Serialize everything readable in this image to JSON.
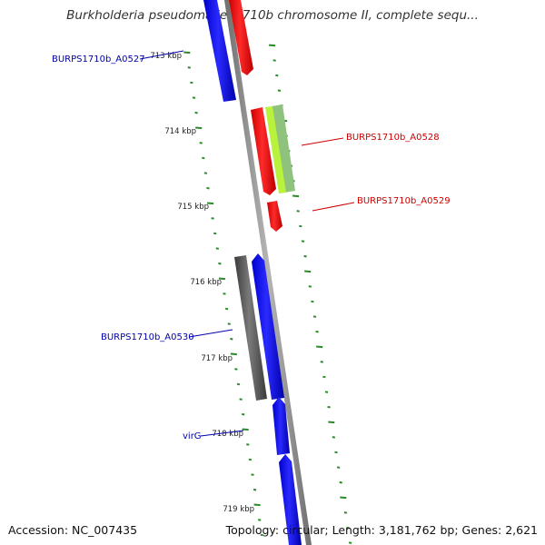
{
  "title": "Burkholderia pseudomallei 1710b chromosome II, complete sequ...",
  "footer": {
    "accession": "Accession: NC_007435",
    "topology": "Topology: circular; Length: 3,181,762 bp; Genes: 2,621"
  },
  "colors": {
    "forward_gene": "#0000ee",
    "reverse_gene": "#ee0000",
    "pseudo_gene": "#555555",
    "rna_light": "#88c070",
    "rna_bright": "#aaf040",
    "backbone": "#8a8a8a",
    "tick": "#2a8a2a"
  },
  "ticks": [
    {
      "label": "713 kbp"
    },
    {
      "label": "714 kbp"
    },
    {
      "label": "715 kbp"
    },
    {
      "label": "716 kbp"
    },
    {
      "label": "717 kbp"
    },
    {
      "label": "718 kbp"
    },
    {
      "label": "719 kbp"
    }
  ],
  "gene_labels": [
    {
      "text": "BURPS1710b_A0527",
      "color": "#0000aa"
    },
    {
      "text": "BURPS1710b_A0528",
      "color": "#cc0000"
    },
    {
      "text": "BURPS1710b_A0529",
      "color": "#cc0000"
    },
    {
      "text": "BURPS1710b_A0530",
      "color": "#0000aa"
    },
    {
      "text": "virG",
      "color": "#0000aa"
    }
  ]
}
